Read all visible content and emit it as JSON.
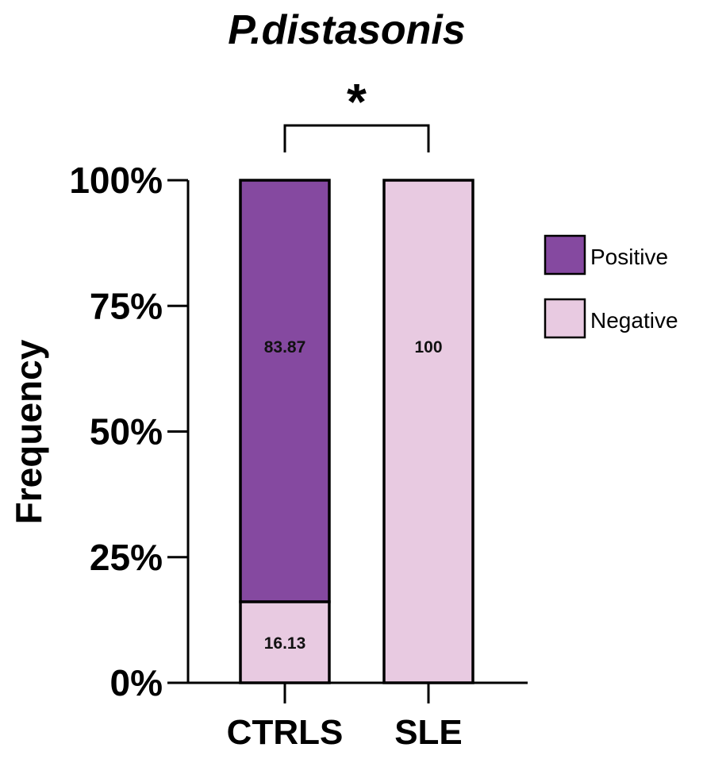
{
  "chart_data": {
    "type": "bar",
    "stacked": true,
    "title": "P.distasonis",
    "ylabel": "Frequency",
    "xlabel": "",
    "categories": [
      "CTRLS",
      "SLE"
    ],
    "series": [
      {
        "name": "Negative",
        "values": [
          16.13,
          100
        ],
        "color": "#E8CAE1"
      },
      {
        "name": "Positive",
        "values": [
          83.87,
          0
        ],
        "color": "#8549A0"
      }
    ],
    "data_labels": [
      {
        "category": "CTRLS",
        "series": "Positive",
        "text": "83.87"
      },
      {
        "category": "CTRLS",
        "series": "Negative",
        "text": "16.13"
      },
      {
        "category": "SLE",
        "series": "Negative",
        "text": "100"
      }
    ],
    "ylim": [
      0,
      100
    ],
    "yticks": [
      0,
      25,
      50,
      75,
      100
    ],
    "ytick_labels": [
      "0%",
      "25%",
      "50%",
      "75%",
      "100%"
    ],
    "legend": {
      "placement": "right",
      "entries": [
        {
          "label": "Positive",
          "color": "#8549A0"
        },
        {
          "label": "Negative",
          "color": "#E8CAE1"
        }
      ]
    },
    "annotations": [
      {
        "type": "significance-bracket",
        "from": "CTRLS",
        "to": "SLE",
        "text": "*"
      }
    ],
    "grid": false
  }
}
